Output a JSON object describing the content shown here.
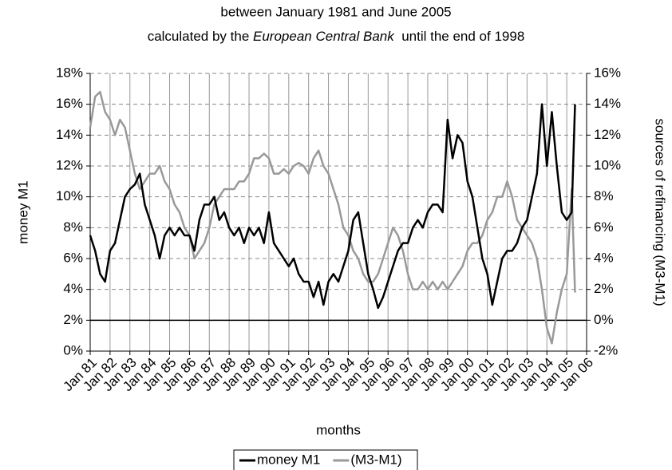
{
  "chart_data": {
    "type": "line",
    "title": "between January 1981 and June 2005",
    "subtitle_parts": [
      "calculated by the ",
      "European Central Bank",
      "  until the end of 1998"
    ],
    "x_label": "months",
    "y_label": "money M1",
    "y2_label": "sources of refinancing (M3-M1)",
    "x": [
      "Jan 81",
      "Apr 81",
      "Jul 81",
      "Oct 81",
      "Jan 82",
      "Apr 82",
      "Jul 82",
      "Oct 82",
      "Jan 83",
      "Apr 83",
      "Jul 83",
      "Oct 83",
      "Jan 84",
      "Apr 84",
      "Jul 84",
      "Oct 84",
      "Jan 85",
      "Apr 85",
      "Jul 85",
      "Oct 85",
      "Jan 86",
      "Apr 86",
      "Jul 86",
      "Oct 86",
      "Jan 87",
      "Apr 87",
      "Jul 87",
      "Oct 87",
      "Jan 88",
      "Apr 88",
      "Jul 88",
      "Oct 88",
      "Jan 89",
      "Apr 89",
      "Jul 89",
      "Oct 89",
      "Jan 90",
      "Apr 90",
      "Jul 90",
      "Oct 90",
      "Jan 91",
      "Apr 91",
      "Jul 91",
      "Oct 91",
      "Jan 92",
      "Apr 92",
      "Jul 92",
      "Oct 92",
      "Jan 93",
      "Apr 93",
      "Jul 93",
      "Oct 93",
      "Jan 94",
      "Apr 94",
      "Jul 94",
      "Oct 94",
      "Jan 95",
      "Apr 95",
      "Jul 95",
      "Oct 95",
      "Jan 96",
      "Apr 96",
      "Jul 96",
      "Oct 96",
      "Jan 97",
      "Apr 97",
      "Jul 97",
      "Oct 97",
      "Jan 98",
      "Apr 98",
      "Jul 98",
      "Oct 98",
      "Jan 99",
      "Apr 99",
      "Jul 99",
      "Oct 99",
      "Jan 00",
      "Apr 00",
      "Jul 00",
      "Oct 00",
      "Jan 01",
      "Apr 01",
      "Jul 01",
      "Oct 01",
      "Jan 02",
      "Apr 02",
      "Jul 02",
      "Oct 02",
      "Jan 03",
      "Apr 03",
      "Jul 03",
      "Oct 03",
      "Jan 04",
      "Apr 04",
      "Jul 04",
      "Oct 04",
      "Jan 05",
      "Apr 05",
      "Jun 05"
    ],
    "series": [
      {
        "name": "money M1",
        "color": "#000000",
        "axis": "y",
        "values": [
          7.5,
          6.5,
          5.0,
          4.5,
          6.5,
          7.0,
          8.5,
          10.0,
          10.5,
          10.8,
          11.5,
          9.5,
          8.5,
          7.5,
          6.0,
          7.5,
          8.0,
          7.5,
          8.0,
          7.5,
          7.5,
          6.5,
          8.5,
          9.5,
          9.5,
          10.0,
          8.5,
          9.0,
          8.0,
          7.5,
          8.0,
          7.0,
          8.0,
          7.5,
          8.0,
          7.0,
          9.0,
          7.0,
          6.5,
          6.0,
          5.5,
          6.0,
          5.0,
          4.5,
          4.5,
          3.5,
          4.5,
          3.0,
          4.5,
          5.0,
          4.5,
          5.5,
          6.5,
          8.5,
          9.0,
          7.0,
          5.0,
          4.0,
          2.8,
          3.5,
          4.5,
          5.5,
          6.5,
          7.0,
          7.0,
          8.0,
          8.5,
          8.0,
          9.0,
          9.5,
          9.5,
          9.0,
          15.0,
          12.5,
          14.0,
          13.5,
          11.0,
          10.0,
          8.0,
          6.0,
          5.0,
          3.0,
          4.5,
          6.0,
          6.5,
          6.5,
          7.0,
          8.0,
          8.5,
          10.0,
          11.5,
          16.0,
          12.0,
          15.5,
          12.0,
          9.0,
          8.5,
          9.0,
          16.0
        ]
      },
      {
        "name": "(M3-M1)",
        "color": "#999999",
        "axis": "y2",
        "values": [
          12.5,
          14.5,
          14.8,
          13.5,
          13.0,
          12.0,
          13.0,
          12.5,
          11.0,
          9.5,
          8.5,
          9.0,
          9.5,
          9.5,
          10.0,
          9.0,
          8.5,
          7.5,
          7.0,
          6.0,
          5.5,
          4.0,
          4.5,
          5.0,
          6.0,
          7.5,
          8.0,
          8.5,
          8.5,
          8.5,
          9.0,
          9.0,
          9.5,
          10.5,
          10.5,
          10.8,
          10.5,
          9.5,
          9.5,
          9.8,
          9.5,
          10.0,
          10.2,
          10.0,
          9.5,
          10.5,
          11.0,
          10.0,
          9.5,
          8.5,
          7.5,
          6.0,
          5.5,
          4.5,
          4.0,
          3.0,
          2.5,
          2.5,
          3.0,
          4.0,
          5.0,
          6.0,
          5.5,
          4.5,
          3.0,
          2.0,
          2.0,
          2.5,
          2.0,
          2.5,
          2.0,
          2.5,
          2.0,
          2.5,
          3.0,
          3.5,
          4.5,
          5.0,
          5.0,
          5.5,
          6.5,
          7.0,
          8.0,
          8.0,
          9.0,
          8.0,
          6.5,
          6.0,
          5.5,
          5.0,
          4.0,
          2.0,
          -0.5,
          -1.5,
          0.5,
          2.0,
          3.0,
          8.5,
          1.8
        ]
      }
    ],
    "xlim": [
      "Jan 81",
      "Jan 06"
    ],
    "xticks": [
      "Jan 81",
      "Jan 82",
      "Jan 83",
      "Jan 84",
      "Jan 85",
      "Jan 86",
      "Jan 87",
      "Jan 88",
      "Jan 89",
      "Jan 90",
      "Jan 91",
      "Jan 92",
      "Jan 93",
      "Jan 94",
      "Jan 95",
      "Jan 96",
      "Jan 97",
      "Jan 98",
      "Jan 99",
      "Jan 00",
      "Jan 01",
      "Jan 02",
      "Jan 03",
      "Jan 04",
      "Jan 05",
      "Jan 06"
    ],
    "ylim": [
      0,
      18
    ],
    "yticks": [
      {
        "value": 0,
        "label": "0%"
      },
      {
        "value": 2,
        "label": "2%"
      },
      {
        "value": 4,
        "label": "4%"
      },
      {
        "value": 6,
        "label": "6%"
      },
      {
        "value": 8,
        "label": "8%"
      },
      {
        "value": 10,
        "label": "10%"
      },
      {
        "value": 12,
        "label": "12%"
      },
      {
        "value": 14,
        "label": "14%"
      },
      {
        "value": 16,
        "label": "16%"
      },
      {
        "value": 18,
        "label": "18%"
      }
    ],
    "y2lim": [
      -2,
      16
    ],
    "y2ticks": [
      {
        "value": -2,
        "label": "-2%"
      },
      {
        "value": 0,
        "label": "0%"
      },
      {
        "value": 2,
        "label": "2%"
      },
      {
        "value": 4,
        "label": "4%"
      },
      {
        "value": 6,
        "label": "6%"
      },
      {
        "value": 8,
        "label": "8%"
      },
      {
        "value": 10,
        "label": "10%"
      },
      {
        "value": 12,
        "label": "12%"
      },
      {
        "value": 14,
        "label": "14%"
      },
      {
        "value": 16,
        "label": "16%"
      }
    ],
    "grid": true,
    "legend": "bottom"
  }
}
